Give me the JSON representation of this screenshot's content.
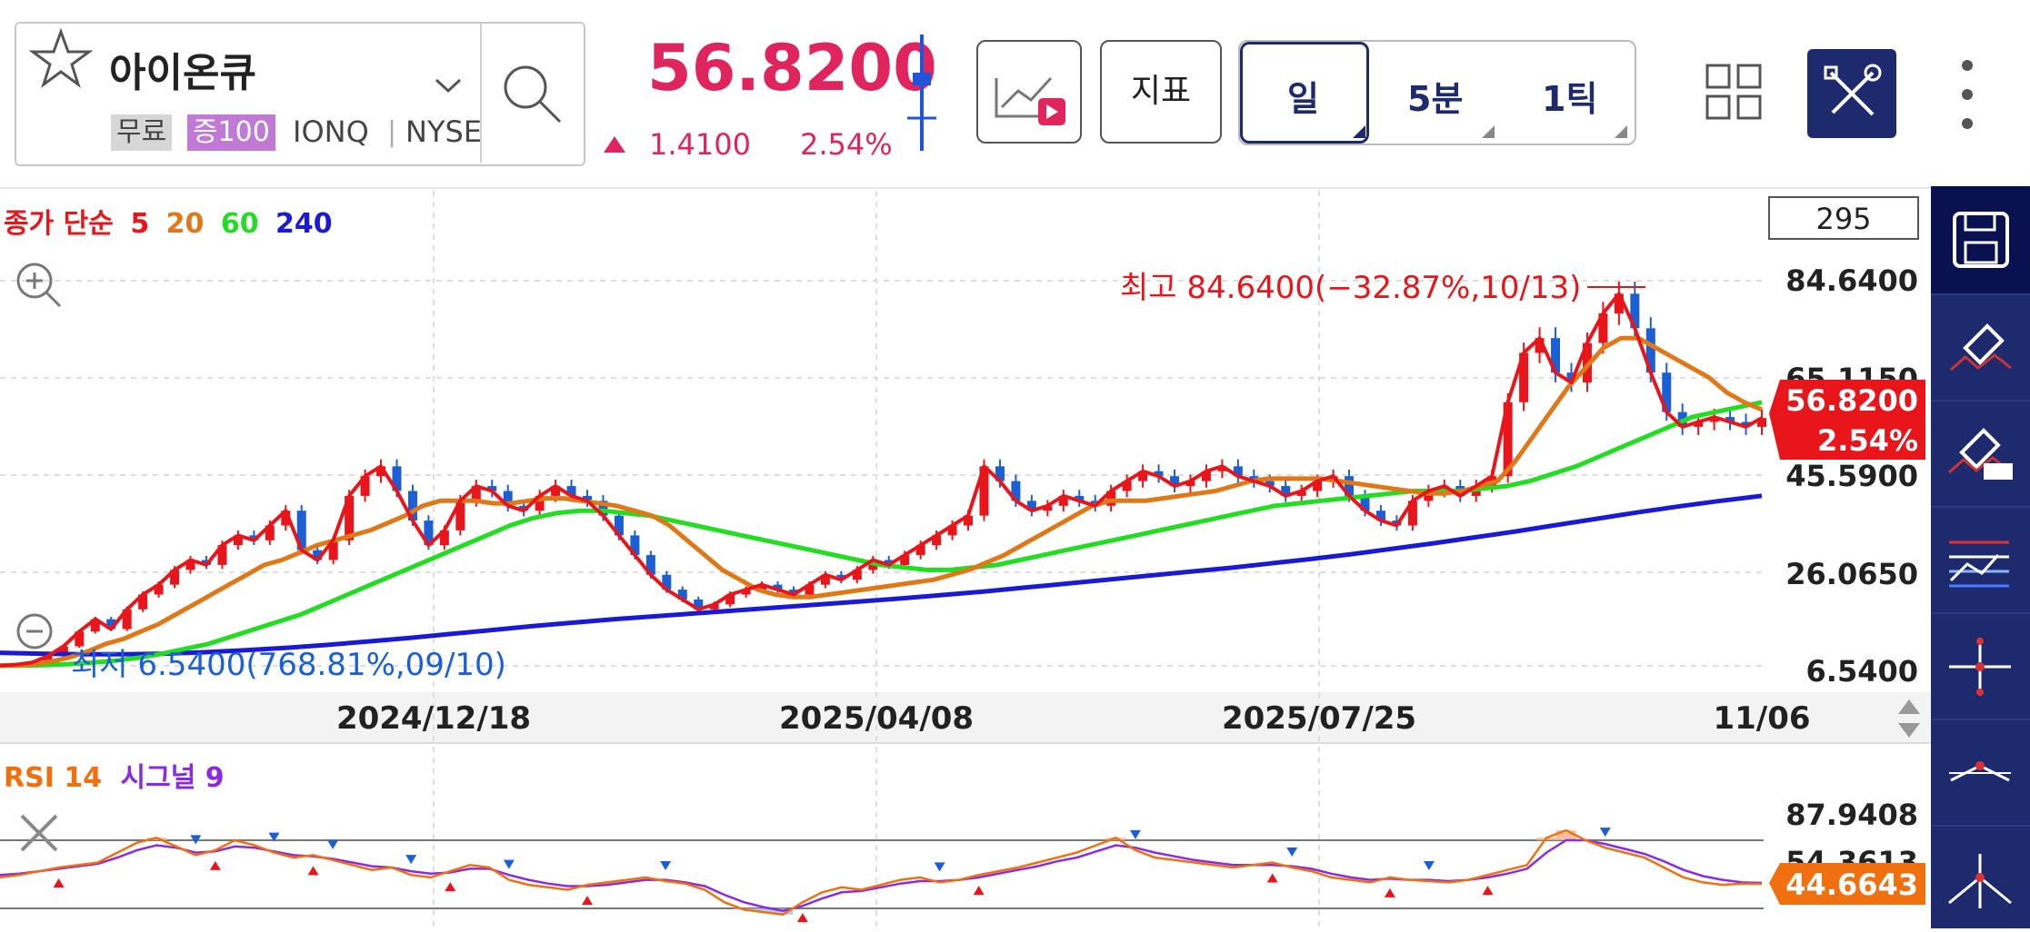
{
  "header": {
    "symbol_name": "아이온큐",
    "chip_free": "무료",
    "chip_margin": "증100",
    "ticker": "IONQ",
    "exchange": "NYSE",
    "price": "56.8200",
    "change": "1.4100",
    "change_pct": "2.54%",
    "indicator_btn": "지표",
    "periods": [
      "일",
      "5분",
      "1틱"
    ],
    "accent": "#1e2a6e",
    "up_color": "#e0245e"
  },
  "legend": {
    "ma_title": "종가 단순",
    "ma_periods": [
      "5",
      "20",
      "60",
      "240"
    ],
    "ma_colors": [
      "#e8151b",
      "#e07818",
      "#22dd22",
      "#1a1ad6"
    ],
    "rsi_title": "RSI 14",
    "rsi_signal": "시그널 9"
  },
  "chart_data": [
    {
      "type": "candlestick",
      "visible_count": "295",
      "x_tick_labels": [
        "2024/12/18",
        "2025/04/08",
        "2025/07/25",
        "11/06"
      ],
      "y_tick_labels": [
        "84.6400",
        "65.1150",
        "45.5900",
        "26.0650",
        "6.5400"
      ],
      "ylim": [
        6.54,
        84.64
      ],
      "current_price": "56.8200",
      "current_pct": "2.54%",
      "annotation_high": "최고 84.6400(−32.87%,10/13)",
      "annotation_low": "최저 6.5400(768.81%,09/10)",
      "series": [
        {
          "name": "5",
          "color": "#e8151b",
          "values": [
            6.6,
            6.8,
            7.2,
            8.5,
            10.5,
            13.5,
            16,
            14,
            18,
            21,
            23,
            26,
            28,
            27,
            31,
            33,
            32,
            35,
            38,
            30,
            28,
            32,
            41,
            45,
            47,
            42,
            36,
            31,
            34,
            40,
            43,
            42,
            39,
            38,
            41,
            43,
            41,
            40,
            37,
            33,
            29,
            25,
            22,
            20,
            18,
            19,
            21,
            22,
            23,
            22,
            21,
            23,
            25,
            24,
            26,
            28,
            27,
            29,
            31,
            33,
            35,
            37,
            47,
            44,
            40,
            38,
            39,
            41,
            40,
            39,
            42,
            44,
            46,
            45,
            43,
            44,
            46,
            47,
            45,
            44,
            43,
            41,
            42,
            44,
            45,
            41,
            38,
            36,
            35,
            40,
            42,
            43,
            41,
            43,
            45,
            60,
            70,
            73,
            66,
            64,
            72,
            78,
            82,
            75,
            66,
            58,
            55,
            56,
            57,
            56,
            55,
            56.8
          ]
        },
        {
          "name": "20",
          "color": "#e07818",
          "values": [
            6.6,
            6.7,
            6.9,
            7.5,
            8.3,
            9.5,
            11,
            12,
            13.5,
            15,
            17,
            19,
            21,
            23,
            25,
            27,
            28,
            29.5,
            31,
            32,
            33,
            34,
            35.5,
            37,
            39,
            40,
            40,
            40,
            39.5,
            39.5,
            40,
            40.5,
            40.5,
            40,
            39.5,
            39,
            38,
            37,
            35,
            32,
            29,
            26,
            24,
            22,
            21,
            20.5,
            20.5,
            21,
            21.5,
            22,
            22.5,
            23,
            23.5,
            24,
            25,
            26,
            27.5,
            29,
            31,
            33,
            35,
            37,
            39,
            40,
            40,
            40,
            40.5,
            41,
            41.5,
            42,
            43,
            44,
            44.5,
            44.5,
            44.5,
            44.5,
            44,
            43.5,
            43,
            42.5,
            42,
            41.5,
            41.5,
            42,
            43,
            44,
            48,
            53,
            58,
            63,
            67,
            71,
            73,
            73,
            71,
            69,
            67,
            65,
            62,
            60,
            58.5
          ]
        },
        {
          "name": "60",
          "color": "#22dd22",
          "values": [
            6.6,
            6.6,
            6.7,
            6.9,
            7.2,
            7.6,
            8.2,
            9,
            10,
            11,
            12.5,
            14,
            15.5,
            17,
            19,
            21,
            23,
            25,
            27,
            29,
            31,
            33,
            35,
            36.5,
            37.5,
            38,
            38,
            37.5,
            37,
            36,
            35,
            34,
            33,
            32,
            31,
            30,
            29,
            28,
            27,
            26.5,
            26,
            26,
            26.5,
            27,
            28,
            29,
            30,
            31,
            32,
            33,
            34,
            35,
            36,
            37,
            38,
            39,
            39.5,
            40,
            40.5,
            41,
            41.5,
            42,
            42,
            42,
            42.5,
            43,
            44,
            45.5,
            47,
            49,
            51,
            53,
            55,
            57,
            58,
            59,
            60
          ]
        },
        {
          "name": "240",
          "color": "#1a1ad6",
          "values": [
            9.2,
            9.0,
            8.9,
            8.9,
            9.0,
            9.3,
            9.7,
            10.2,
            10.8,
            11.5,
            12.2,
            13,
            13.8,
            14.6,
            15.3,
            16,
            16.6,
            17.2,
            17.8,
            18.4,
            19,
            19.6,
            20.2,
            20.9,
            21.6,
            22.4,
            23.2,
            24,
            24.8,
            25.6,
            26.4,
            27.3,
            28.2,
            29.2,
            30.3,
            31.4,
            32.6,
            33.8,
            35.1,
            36.4,
            37.7,
            38.9,
            40,
            41
          ]
        }
      ]
    },
    {
      "type": "line",
      "name": "RSI 14",
      "y_tick_labels": [
        "87.9408",
        "54.3613"
      ],
      "current_value": "44.6643",
      "series": [
        {
          "name": "RSI 14",
          "color": "#f07010",
          "values": [
            50,
            52,
            55,
            58,
            60,
            62,
            70,
            78,
            82,
            75,
            68,
            72,
            80,
            76,
            70,
            66,
            68,
            64,
            60,
            56,
            58,
            52,
            50,
            55,
            60,
            58,
            48,
            44,
            42,
            40,
            44,
            46,
            48,
            50,
            47,
            45,
            40,
            30,
            24,
            22,
            20,
            30,
            38,
            42,
            40,
            44,
            48,
            50,
            46,
            48,
            52,
            55,
            58,
            62,
            66,
            70,
            76,
            82,
            72,
            66,
            64,
            62,
            60,
            58,
            60,
            62,
            58,
            55,
            50,
            48,
            46,
            50,
            48,
            47,
            46,
            48,
            52,
            56,
            60,
            82,
            88,
            80,
            74,
            70,
            66,
            58,
            50,
            46,
            44,
            45,
            44.7
          ]
        },
        {
          "name": "시그널 9",
          "color": "#8a2be2",
          "values": [
            52,
            53,
            55,
            57,
            59,
            61,
            66,
            72,
            76,
            74,
            70,
            71,
            75,
            74,
            71,
            68,
            67,
            65,
            62,
            59,
            58,
            55,
            53,
            54,
            57,
            57,
            52,
            48,
            45,
            43,
            43,
            44,
            46,
            48,
            48,
            46,
            43,
            36,
            30,
            26,
            23,
            27,
            33,
            38,
            39,
            42,
            45,
            47,
            47,
            48,
            50,
            53,
            56,
            59,
            63,
            66,
            71,
            76,
            74,
            70,
            67,
            64,
            62,
            60,
            60,
            60,
            59,
            57,
            53,
            50,
            48,
            49,
            48,
            48,
            47,
            48,
            50,
            53,
            57,
            70,
            80,
            80,
            77,
            73,
            69,
            63,
            56,
            51,
            48,
            46,
            45.5
          ]
        }
      ]
    }
  ]
}
